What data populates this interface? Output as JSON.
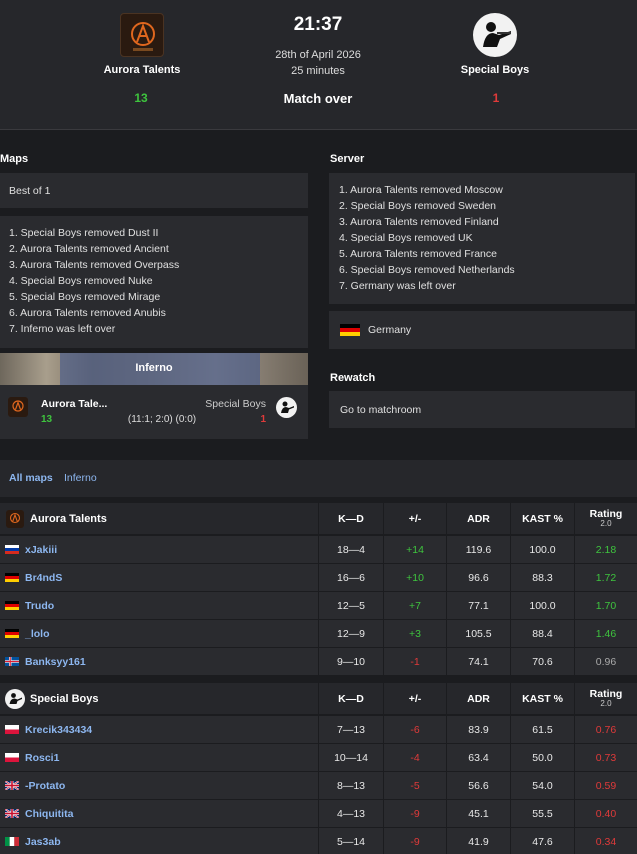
{
  "match": {
    "time": "21:37",
    "date": "28th of April 2026",
    "duration": "25 minutes",
    "status": "Match over",
    "team1": {
      "name": "Aurora Talents",
      "score": "13"
    },
    "team2": {
      "name": "Special Boys",
      "score": "1"
    }
  },
  "maps": {
    "title": "Maps",
    "format": "Best of 1",
    "vetoes": [
      "1. Special Boys removed Dust II",
      "2. Aurora Talents removed Ancient",
      "3. Aurora Talents removed Overpass",
      "4. Special Boys removed Nuke",
      "5. Special Boys removed Mirage",
      "6. Aurora Talents removed Anubis",
      "7. Inferno was left over"
    ],
    "played": {
      "map_name": "Inferno",
      "team1_name": "Aurora Tale...",
      "team1_score": "13",
      "team2_name": "Special Boys",
      "team2_score": "1",
      "half_scores": "(11:1; 2:0) (0:0)"
    }
  },
  "server": {
    "title": "Server",
    "vetoes": [
      "1. Aurora Talents removed Moscow",
      "2. Special Boys removed Sweden",
      "3. Aurora Talents removed Finland",
      "4. Special Boys removed UK",
      "5. Aurora Talents removed France",
      "6. Special Boys removed Netherlands",
      "7. Germany was left over"
    ],
    "selected": "Germany"
  },
  "rewatch": {
    "title": "Rewatch",
    "link": "Go to matchroom"
  },
  "stats_tabs": {
    "all": "All maps",
    "map": "Inferno"
  },
  "columns": {
    "kd": "K—D",
    "pm": "+/-",
    "adr": "ADR",
    "kast": "KAST %",
    "rating": "Rating",
    "rating_sub": "2.0"
  },
  "team1_stats": {
    "name": "Aurora Talents",
    "players": [
      {
        "name": "xJakiii",
        "flag": "flag-russia",
        "kd": "18—4",
        "pm": "+14",
        "adr": "119.6",
        "kast": "100.0",
        "rating": "2.18"
      },
      {
        "name": "Br4ndS",
        "flag": "flag-germany",
        "kd": "16—6",
        "pm": "+10",
        "adr": "96.6",
        "kast": "88.3",
        "rating": "1.72"
      },
      {
        "name": "Trudo",
        "flag": "flag-germany",
        "kd": "12—5",
        "pm": "+7",
        "adr": "77.1",
        "kast": "100.0",
        "rating": "1.70"
      },
      {
        "name": "_lolo",
        "flag": "flag-germany",
        "kd": "12—9",
        "pm": "+3",
        "adr": "105.5",
        "kast": "88.4",
        "rating": "1.46"
      },
      {
        "name": "Banksyy161",
        "flag": "flag-iceland",
        "kd": "9—10",
        "pm": "-1",
        "adr": "74.1",
        "kast": "70.6",
        "rating": "0.96"
      }
    ]
  },
  "team2_stats": {
    "name": "Special Boys",
    "players": [
      {
        "name": "Krecik343434",
        "flag": "flag-poland",
        "kd": "7—13",
        "pm": "-6",
        "adr": "83.9",
        "kast": "61.5",
        "rating": "0.76"
      },
      {
        "name": "Rosci1",
        "flag": "flag-poland",
        "kd": "10—14",
        "pm": "-4",
        "adr": "63.4",
        "kast": "50.0",
        "rating": "0.73"
      },
      {
        "name": "-Protato",
        "flag": "flag-uk",
        "kd": "8—13",
        "pm": "-5",
        "adr": "56.6",
        "kast": "54.0",
        "rating": "0.59"
      },
      {
        "name": "Chiquitita",
        "flag": "flag-uk",
        "kd": "4—13",
        "pm": "-9",
        "adr": "45.1",
        "kast": "55.5",
        "rating": "0.40"
      },
      {
        "name": "Jas3ab",
        "flag": "flag-italy",
        "kd": "5—14",
        "pm": "-9",
        "adr": "41.9",
        "kast": "47.6",
        "rating": "0.34"
      }
    ]
  },
  "colors": {
    "positive": "#3ec43e",
    "negative": "#e03a3a",
    "neutral": "#aaaaaa",
    "player_link": "#8db7f0"
  }
}
